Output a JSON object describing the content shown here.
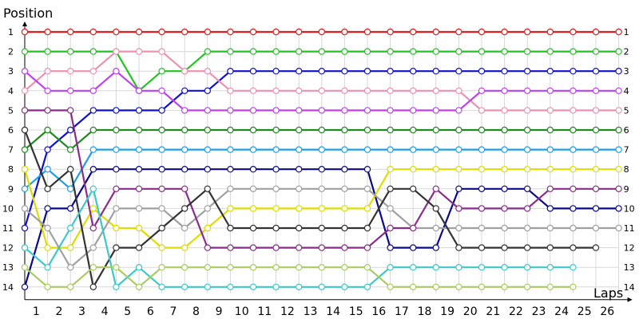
{
  "chart_data": {
    "type": "line",
    "xlabel": "Laps",
    "ylabel": "Position",
    "x": [
      0,
      1,
      2,
      3,
      4,
      5,
      6,
      7,
      8,
      9,
      10,
      11,
      12,
      13,
      14,
      15,
      16,
      17,
      18,
      19,
      20,
      21,
      22,
      23,
      24,
      25,
      26
    ],
    "x_tick_labels": [
      "1",
      "2",
      "3",
      "4",
      "5",
      "6",
      "7",
      "8",
      "9",
      "10",
      "11",
      "12",
      "13",
      "14",
      "15",
      "16",
      "17",
      "18",
      "19",
      "20",
      "21",
      "22",
      "23",
      "24",
      "25",
      "26"
    ],
    "y_tick_labels": [
      "1",
      "2",
      "3",
      "4",
      "5",
      "6",
      "7",
      "8",
      "9",
      "10",
      "11",
      "12",
      "13",
      "14"
    ],
    "xlim": [
      0,
      26
    ],
    "ylim": [
      1,
      14
    ],
    "y_inverted": true,
    "grid": true,
    "legend": "none",
    "series": [
      {
        "color": "#e02020",
        "values": [
          1,
          1,
          1,
          1,
          1,
          1,
          1,
          1,
          1,
          1,
          1,
          1,
          1,
          1,
          1,
          1,
          1,
          1,
          1,
          1,
          1,
          1,
          1,
          1,
          1,
          1,
          1
        ]
      },
      {
        "color": "#22c422",
        "values": [
          2,
          2,
          2,
          2,
          2,
          4,
          3,
          3,
          2,
          2,
          2,
          2,
          2,
          2,
          2,
          2,
          2,
          2,
          2,
          2,
          2,
          2,
          2,
          2,
          2,
          2,
          2
        ]
      },
      {
        "color": "#1010d0",
        "values": [
          11,
          7,
          6,
          5,
          5,
          5,
          5,
          4,
          4,
          3,
          3,
          3,
          3,
          3,
          3,
          3,
          3,
          3,
          3,
          3,
          3,
          3,
          3,
          3,
          3,
          3,
          3
        ]
      },
      {
        "color": "#f090b0",
        "values": [
          4,
          3,
          3,
          3,
          2,
          2,
          2,
          3,
          3,
          4,
          4,
          4,
          4,
          4,
          4,
          4,
          4,
          4,
          4,
          4,
          5,
          5,
          5,
          5,
          5,
          5,
          5
        ]
      },
      {
        "color": "#c040f0",
        "values": [
          3,
          4,
          4,
          4,
          3,
          4,
          4,
          5,
          5,
          5,
          5,
          5,
          5,
          5,
          5,
          5,
          5,
          5,
          5,
          5,
          4,
          4,
          4,
          4,
          4,
          4,
          4
        ]
      },
      {
        "color": "#208a20",
        "values": [
          7,
          6,
          7,
          6,
          6,
          6,
          6,
          6,
          6,
          6,
          6,
          6,
          6,
          6,
          6,
          6,
          6,
          6,
          6,
          6,
          6,
          6,
          6,
          6,
          6,
          6,
          6
        ]
      },
      {
        "color": "#1e9ee8",
        "values": [
          9,
          8,
          9,
          7,
          7,
          7,
          7,
          7,
          7,
          7,
          7,
          7,
          7,
          7,
          7,
          7,
          7,
          7,
          7,
          7,
          7,
          7,
          7,
          7,
          7,
          7,
          7
        ]
      },
      {
        "color": "#0a0a8a",
        "values": [
          14,
          10,
          10,
          8,
          8,
          8,
          8,
          8,
          8,
          8,
          8,
          8,
          8,
          8,
          8,
          8,
          12,
          12,
          12,
          9,
          9,
          9,
          9,
          10,
          10,
          10,
          10
        ]
      },
      {
        "color": "#dddd00",
        "values": [
          8,
          12,
          12,
          10,
          11,
          11,
          12,
          12,
          11,
          10,
          10,
          10,
          10,
          10,
          10,
          10,
          8,
          8,
          8,
          8,
          8,
          8,
          8,
          8,
          8,
          8,
          8
        ]
      },
      {
        "color": "#a0a0a0",
        "values": [
          10,
          11,
          13,
          12,
          10,
          10,
          10,
          11,
          10,
          9,
          9,
          9,
          9,
          9,
          9,
          9,
          10,
          11,
          11,
          11,
          11,
          11,
          11,
          11,
          11,
          11,
          11
        ]
      },
      {
        "color": "#8a2c8a",
        "values": [
          5,
          5,
          5,
          11,
          9,
          9,
          9,
          9,
          12,
          12,
          12,
          12,
          12,
          12,
          12,
          12,
          11,
          11,
          9,
          10,
          10,
          10,
          10,
          9,
          9,
          9,
          9
        ]
      },
      {
        "color": "#333333",
        "values": [
          6,
          9,
          8,
          14,
          12,
          12,
          11,
          10,
          9,
          11,
          11,
          11,
          11,
          11,
          11,
          11,
          9,
          9,
          10,
          12,
          12,
          12,
          12,
          12,
          12,
          12,
          null
        ]
      },
      {
        "color": "#3cc8c8",
        "values": [
          12,
          13,
          11,
          9,
          14,
          13,
          14,
          14,
          14,
          14,
          14,
          14,
          14,
          14,
          14,
          14,
          13,
          13,
          13,
          13,
          13,
          13,
          13,
          13,
          13,
          null,
          null
        ]
      },
      {
        "color": "#a8cc60",
        "values": [
          13,
          14,
          14,
          13,
          13,
          14,
          13,
          13,
          13,
          13,
          13,
          13,
          13,
          13,
          13,
          13,
          14,
          14,
          14,
          14,
          14,
          14,
          14,
          14,
          14,
          null,
          null
        ]
      }
    ]
  }
}
